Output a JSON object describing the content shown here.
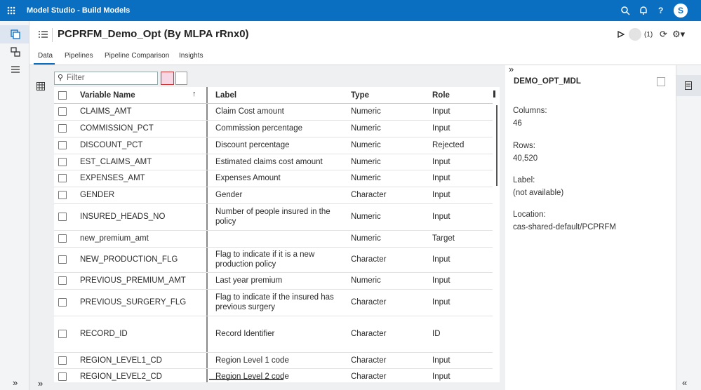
{
  "app": {
    "title": "Model Studio - Build Models",
    "user_initial": "S"
  },
  "header": {
    "title": "PCPRFM_Demo_Opt (By MLPA rRnx0)",
    "count": "(1)"
  },
  "tabs": [
    "Data",
    "Pipelines",
    "Pipeline Comparison",
    "Insights"
  ],
  "filter": {
    "placeholder": "Filter"
  },
  "table": {
    "columns": [
      "Variable Name",
      "Label",
      "Type",
      "Role"
    ],
    "rows": [
      [
        "CLAIMS_AMT",
        "Claim Cost amount",
        "Numeric",
        "Input"
      ],
      [
        "COMMISSION_PCT",
        "Commission percentage",
        "Numeric",
        "Input"
      ],
      [
        "DISCOUNT_PCT",
        "Discount percentage",
        "Numeric",
        "Rejected"
      ],
      [
        "EST_CLAIMS_AMT",
        "Estimated claims cost amount",
        "Numeric",
        "Input"
      ],
      [
        "EXPENSES_AMT",
        "Expenses Amount",
        "Numeric",
        "Input"
      ],
      [
        "GENDER",
        "Gender",
        "Character",
        "Input"
      ],
      [
        "INSURED_HEADS_NO",
        "Number of people insured in the policy",
        "Numeric",
        "Input"
      ],
      [
        "new_premium_amt",
        null,
        "Numeric",
        "Target"
      ],
      [
        "NEW_PRODUCTION_FLG",
        "Flag to indicate if it is a new production policy",
        "Character",
        "Input"
      ],
      [
        "PREVIOUS_PREMIUM_AMT",
        "Last year premium",
        "Numeric",
        "Input"
      ],
      [
        "PREVIOUS_SURGERY_FLG",
        "Flag to indicate if the insured has previous surgery",
        "Character",
        "Input"
      ],
      [
        "RECORD_ID",
        "Record Identifier",
        "Character",
        "ID"
      ],
      [
        "REGION_LEVEL1_CD",
        "Region Level 1 code",
        "Character",
        "Input"
      ],
      [
        "REGION_LEVEL2_CD",
        "Region Level 2 code",
        "Character",
        "Input"
      ]
    ]
  },
  "details": {
    "title": "DEMO_OPT_MDL",
    "fields": [
      {
        "label": "Columns:",
        "value": "46"
      },
      {
        "label": "Rows:",
        "value": "40,520"
      },
      {
        "label": "Label:",
        "value": "(not available)"
      },
      {
        "label": "Location:",
        "value": "cas-shared-default/PCPRFM"
      }
    ]
  }
}
